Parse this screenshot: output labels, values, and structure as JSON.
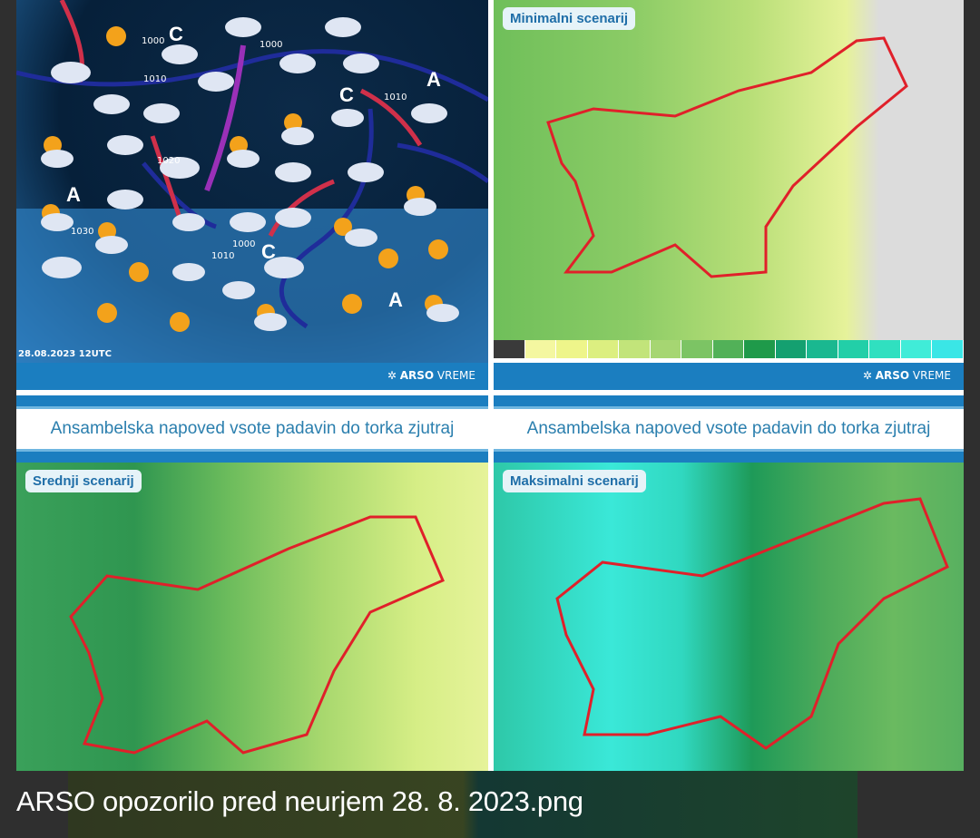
{
  "viewer": {
    "filename": "ARSO opozorilo pred neurjem 28. 8. 2023.png"
  },
  "panels": {
    "synoptic": {
      "timestamp": "28.08.2023 12UTC",
      "pressure_labels": [
        "1000",
        "1000",
        "1010",
        "1020",
        "1030",
        "1010",
        "1010",
        "1000"
      ],
      "highs": [
        "A",
        "A",
        "A"
      ],
      "lows": [
        "C",
        "C",
        "C"
      ]
    },
    "brand": {
      "strong": "ARSO",
      "light": " VREME"
    },
    "forecast_title": "Ansambelska napoved vsote padavin do torka zjutraj",
    "min": {
      "label": "Minimalni scenarij"
    },
    "mid": {
      "label": "Srednji scenarij"
    },
    "max": {
      "label": "Maksimalni scenarij"
    }
  },
  "legend_colors": [
    "#3a3a3a",
    "#f4f7a0",
    "#eef58a",
    "#dcef80",
    "#c2e47a",
    "#a6d672",
    "#7cc464",
    "#52b158",
    "#1f9a4a",
    "#14a070",
    "#1ab890",
    "#22cfa8",
    "#30e0c0",
    "#40ecd8",
    "#3ae6e6"
  ]
}
